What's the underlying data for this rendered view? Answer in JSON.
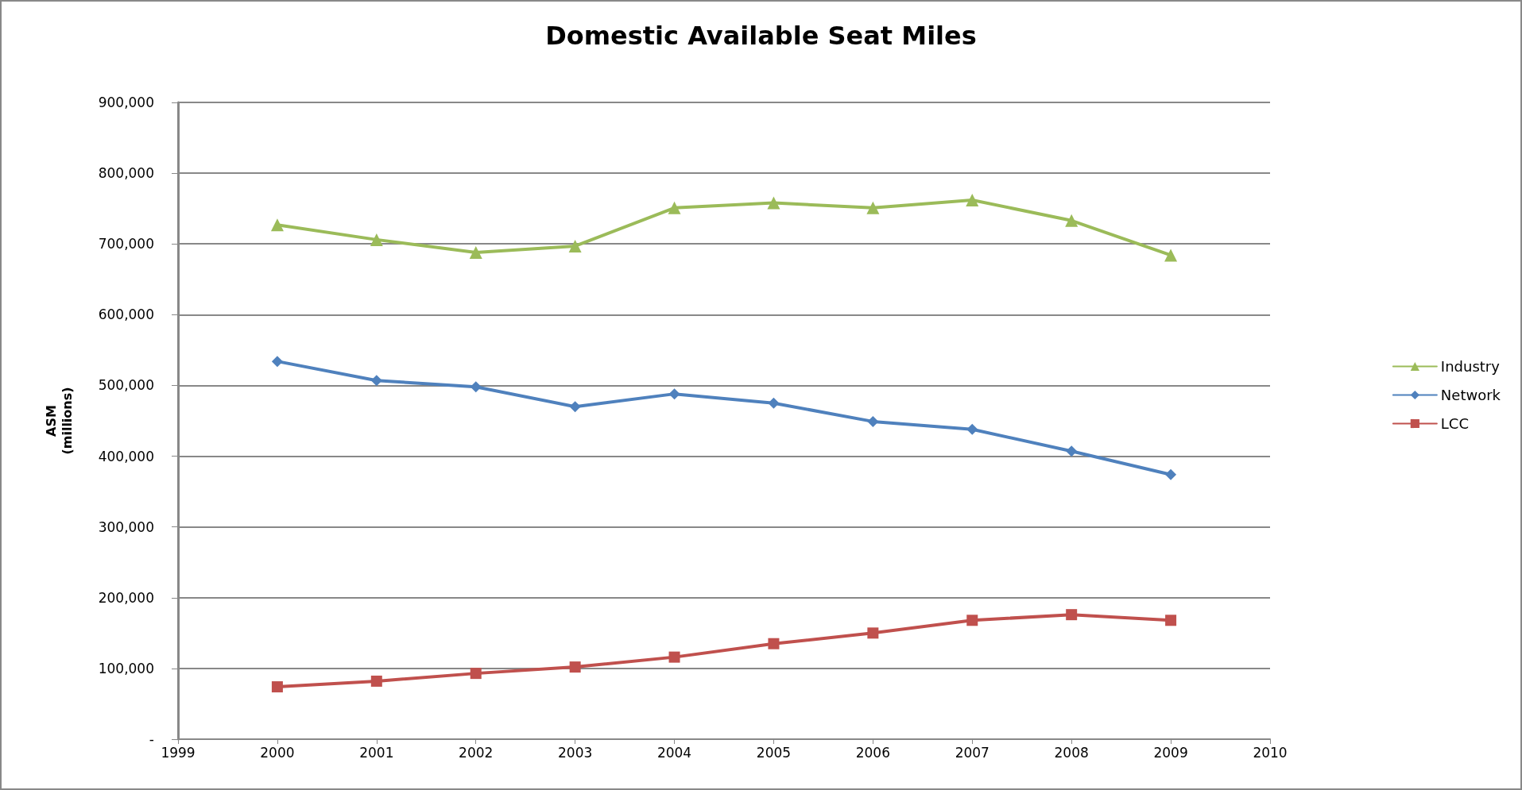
{
  "chart_data": {
    "type": "line",
    "title": "Domestic Available Seat Miles",
    "ylabel": "ASM\n(millions)",
    "x": [
      2000,
      2001,
      2002,
      2003,
      2004,
      2005,
      2006,
      2007,
      2008,
      2009
    ],
    "series": [
      {
        "name": "Industry",
        "color": "#9bbb59",
        "marker": "triangle",
        "values": [
          727000,
          706000,
          688000,
          697000,
          751000,
          758000,
          751000,
          762000,
          733000,
          684000
        ]
      },
      {
        "name": "Network",
        "color": "#4f81bd",
        "marker": "diamond",
        "values": [
          534000,
          507000,
          498000,
          470000,
          488000,
          475000,
          449000,
          438000,
          407000,
          374000
        ]
      },
      {
        "name": "LCC",
        "color": "#c0504d",
        "marker": "square",
        "values": [
          74000,
          82000,
          93000,
          102000,
          116000,
          135000,
          150000,
          168000,
          176000,
          168000
        ]
      }
    ],
    "xlim": [
      1999,
      2010
    ],
    "xticks": [
      1999,
      2000,
      2001,
      2002,
      2003,
      2004,
      2005,
      2006,
      2007,
      2008,
      2009,
      2010
    ],
    "ylim": [
      0,
      900000
    ],
    "yticks": [
      {
        "value": 0,
        "label": "-"
      },
      {
        "value": 100000,
        "label": "100,000"
      },
      {
        "value": 200000,
        "label": "200,000"
      },
      {
        "value": 300000,
        "label": "300,000"
      },
      {
        "value": 400000,
        "label": "400,000"
      },
      {
        "value": 500000,
        "label": "500,000"
      },
      {
        "value": 600000,
        "label": "600,000"
      },
      {
        "value": 700000,
        "label": "700,000"
      },
      {
        "value": 800000,
        "label": "800,000"
      },
      {
        "value": 900000,
        "label": "900,000"
      }
    ],
    "grid": "y",
    "legend": "right",
    "line_style": "solid"
  }
}
